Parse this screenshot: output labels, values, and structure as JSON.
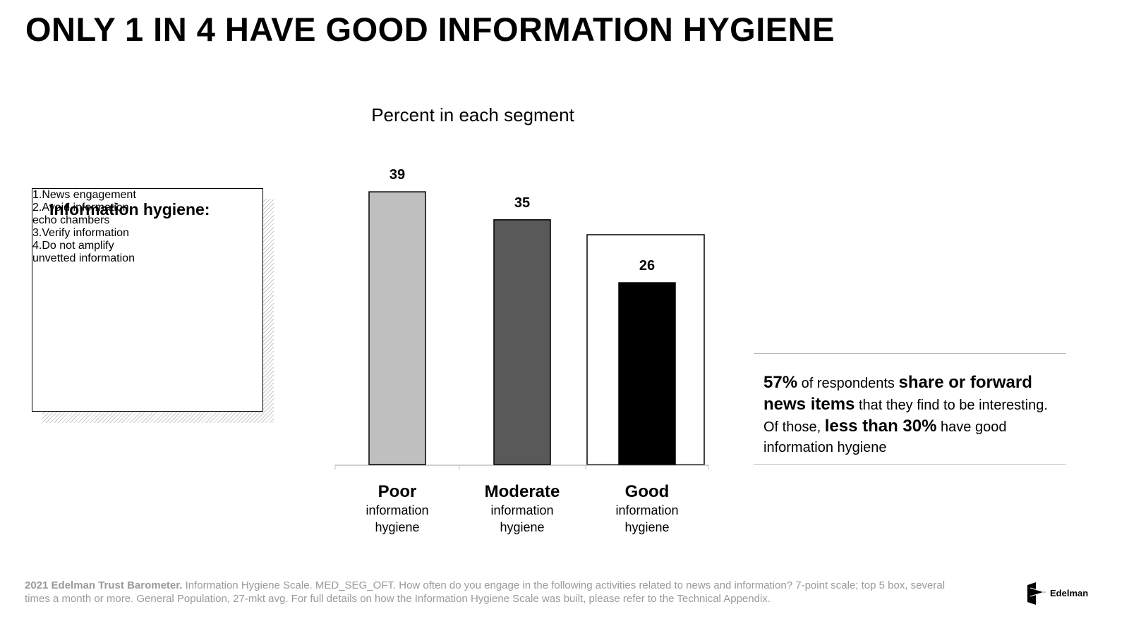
{
  "title": "ONLY 1 IN 4 HAVE GOOD INFORMATION HYGIENE",
  "chart_data": {
    "type": "bar",
    "title": "Percent in each segment",
    "categories": [
      "Poor",
      "Moderate",
      "Good"
    ],
    "category_sublabel": "information hygiene",
    "values": [
      39,
      35,
      26
    ],
    "colors": [
      "#bfbfbf",
      "#595959",
      "#000000"
    ]
  },
  "sidebar": {
    "title": "Information hygiene:",
    "items": [
      {
        "number": "1.",
        "lines": [
          "News engagement"
        ]
      },
      {
        "number": "2.",
        "lines": [
          "Avoid information",
          "echo chambers"
        ]
      },
      {
        "number": "3.",
        "lines": [
          "Verify information"
        ]
      },
      {
        "number": "4.",
        "lines": [
          "Do not amplify",
          "unvetted information"
        ]
      }
    ]
  },
  "callout": [
    {
      "text": "57%",
      "bold": true
    },
    {
      "text": "of respondents",
      "bold": false
    },
    {
      "text": "share or forward news items",
      "bold": true
    },
    {
      "text": "that they find to be interesting. Of those,",
      "bold": false
    },
    {
      "text": "less than 30%",
      "bold": true
    },
    {
      "text": "have good information hygiene",
      "bold": false
    }
  ],
  "footnote": {
    "source": "2021 Edelman Trust Barometer.",
    "text": "Information Hygiene Scale. MED_SEG_OFT. How often do you engage in the following activities related to news and information? 7-point scale; top 5 box, several times a month or more. General Population, 27-mkt avg. For full details on how the Information Hygiene Scale was built, please refer to the Technical Appendix."
  },
  "logo": "Edelman"
}
